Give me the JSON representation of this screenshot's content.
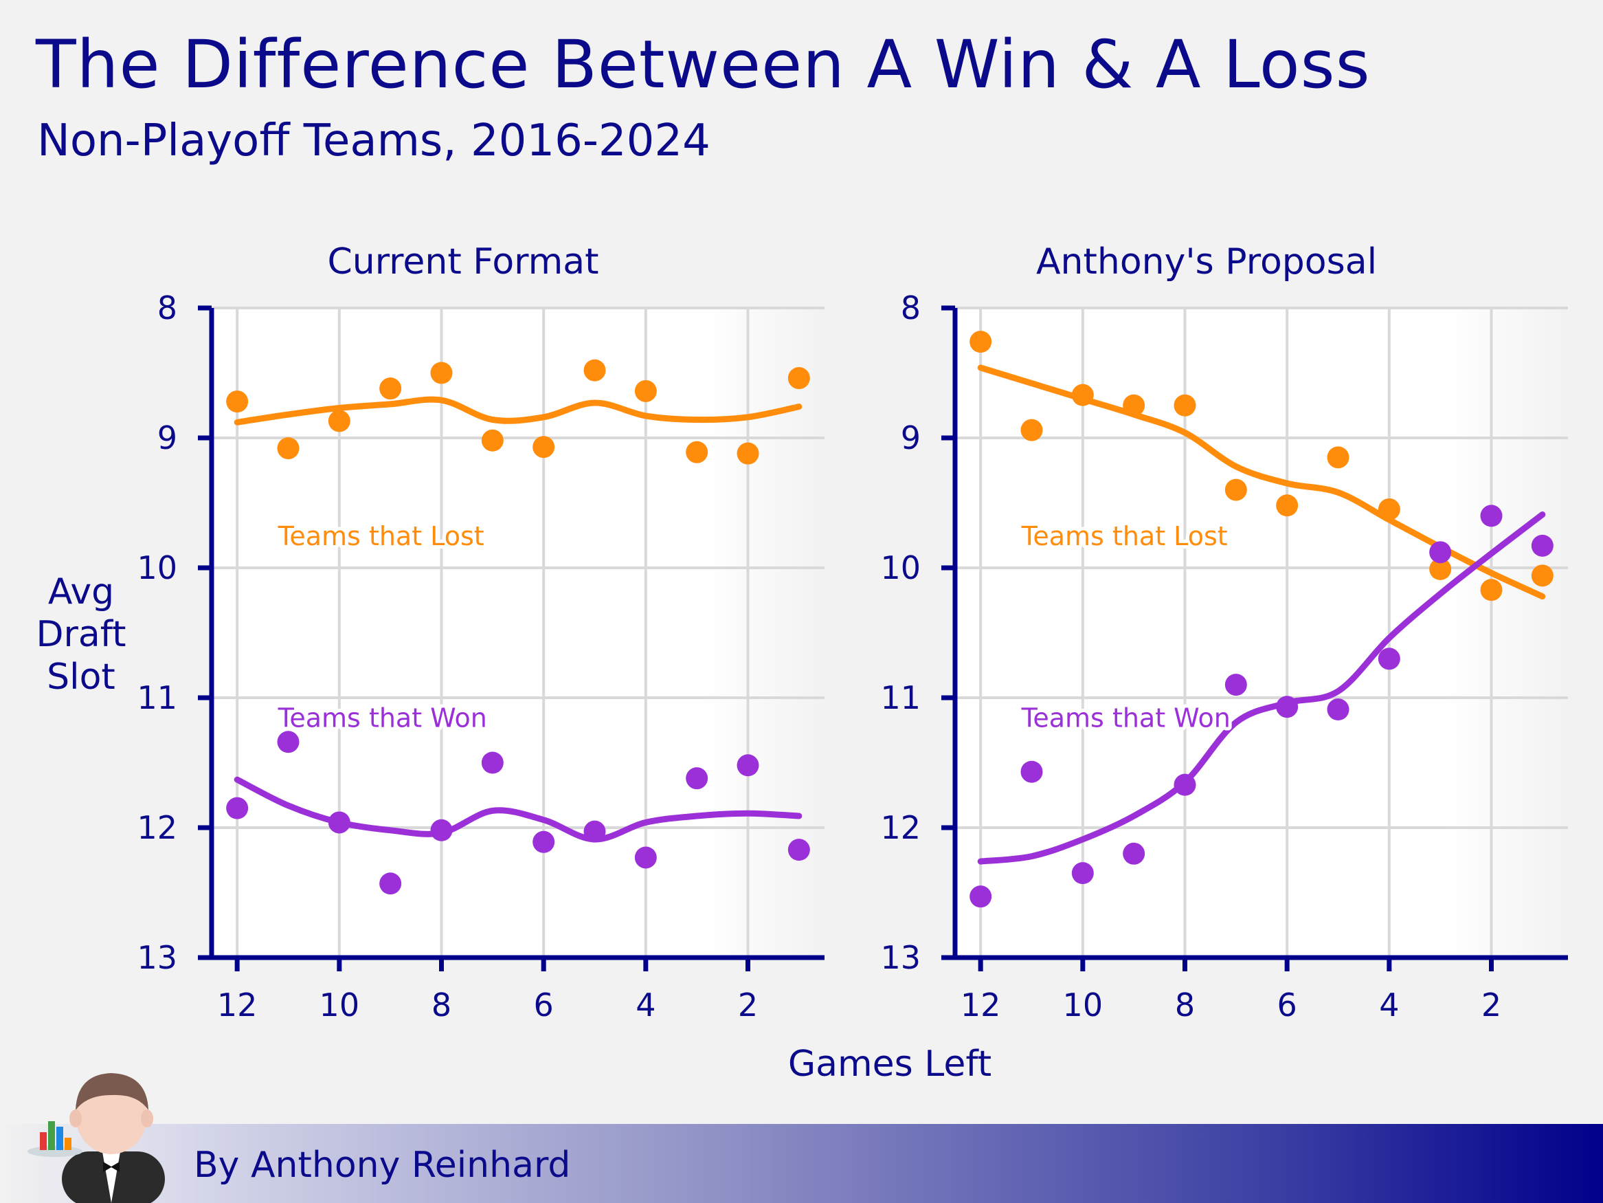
{
  "title": "The Difference Between A Win & A Loss",
  "subtitle": "Non-Playoff Teams, 2016-2024",
  "byline": "By Anthony Reinhard",
  "colors": {
    "lost": "#ff8c0a",
    "won": "#9b30d9",
    "text": "#0a0a8a",
    "axis": "#00008b",
    "grid": "#d9d9d9"
  },
  "chart_data": {
    "xlabel": "Games Left",
    "ylabel_lines": [
      "Avg",
      "Draft",
      "Slot"
    ],
    "xlim": [
      12.5,
      0.5
    ],
    "ylim": [
      13,
      8
    ],
    "xticks": [
      12,
      10,
      8,
      6,
      4,
      2
    ],
    "yticks": [
      8,
      9,
      10,
      11,
      12,
      13
    ],
    "panels": [
      {
        "title": "Current Format",
        "series": [
          {
            "name": "Teams that Lost",
            "color_key": "lost",
            "label": "Teams that Lost",
            "label_pos": [
              11.2,
              9.75
            ],
            "points": [
              [
                12,
                8.72
              ],
              [
                11,
                9.08
              ],
              [
                10,
                8.87
              ],
              [
                9,
                8.62
              ],
              [
                8,
                8.5
              ],
              [
                7,
                9.02
              ],
              [
                6,
                9.07
              ],
              [
                5,
                8.48
              ],
              [
                4,
                8.64
              ],
              [
                3,
                9.11
              ],
              [
                2,
                9.12
              ],
              [
                1,
                8.54
              ]
            ],
            "trend": [
              [
                12,
                8.88
              ],
              [
                11,
                8.82
              ],
              [
                10,
                8.77
              ],
              [
                9,
                8.74
              ],
              [
                8,
                8.71
              ],
              [
                7,
                8.86
              ],
              [
                6,
                8.84
              ],
              [
                5,
                8.73
              ],
              [
                4,
                8.83
              ],
              [
                3,
                8.86
              ],
              [
                2,
                8.84
              ],
              [
                1,
                8.76
              ]
            ]
          },
          {
            "name": "Teams that Won",
            "color_key": "won",
            "label": "Teams that Won",
            "label_pos": [
              11.2,
              11.15
            ],
            "points": [
              [
                12,
                11.85
              ],
              [
                11,
                11.34
              ],
              [
                10,
                11.96
              ],
              [
                9,
                12.43
              ],
              [
                8,
                12.02
              ],
              [
                7,
                11.5
              ],
              [
                6,
                12.11
              ],
              [
                5,
                12.03
              ],
              [
                4,
                12.23
              ],
              [
                3,
                11.62
              ],
              [
                2,
                11.52
              ],
              [
                1,
                12.17
              ]
            ],
            "trend": [
              [
                12,
                11.63
              ],
              [
                11,
                11.83
              ],
              [
                10,
                11.96
              ],
              [
                9,
                12.02
              ],
              [
                8,
                12.04
              ],
              [
                7,
                11.87
              ],
              [
                6,
                11.94
              ],
              [
                5,
                12.09
              ],
              [
                4,
                11.96
              ],
              [
                3,
                11.91
              ],
              [
                2,
                11.89
              ],
              [
                1,
                11.91
              ]
            ]
          }
        ]
      },
      {
        "title": "Anthony's Proposal",
        "series": [
          {
            "name": "Teams that Lost",
            "color_key": "lost",
            "label": "Teams that Lost",
            "label_pos": [
              11.2,
              9.75
            ],
            "points": [
              [
                12,
                8.26
              ],
              [
                11,
                8.94
              ],
              [
                10,
                8.67
              ],
              [
                9,
                8.75
              ],
              [
                8,
                8.75
              ],
              [
                7,
                9.4
              ],
              [
                6,
                9.52
              ],
              [
                5,
                9.15
              ],
              [
                4,
                9.55
              ],
              [
                3,
                10.01
              ],
              [
                2,
                10.17
              ],
              [
                1,
                10.06
              ]
            ],
            "trend": [
              [
                12,
                8.46
              ],
              [
                11,
                8.58
              ],
              [
                10,
                8.7
              ],
              [
                9,
                8.82
              ],
              [
                8,
                8.96
              ],
              [
                7,
                9.22
              ],
              [
                6,
                9.35
              ],
              [
                5,
                9.42
              ],
              [
                4,
                9.63
              ],
              [
                3,
                9.84
              ],
              [
                2,
                10.04
              ],
              [
                1,
                10.22
              ]
            ]
          },
          {
            "name": "Teams that Won",
            "color_key": "won",
            "label": "Teams that Won",
            "label_pos": [
              11.2,
              11.15
            ],
            "points": [
              [
                12,
                12.53
              ],
              [
                11,
                11.57
              ],
              [
                10,
                12.35
              ],
              [
                9,
                12.2
              ],
              [
                8,
                11.67
              ],
              [
                7,
                10.9
              ],
              [
                6,
                11.07
              ],
              [
                5,
                11.09
              ],
              [
                4,
                10.7
              ],
              [
                3,
                9.88
              ],
              [
                2,
                9.6
              ],
              [
                1,
                9.83
              ]
            ],
            "trend": [
              [
                12,
                12.26
              ],
              [
                11,
                12.22
              ],
              [
                10,
                12.09
              ],
              [
                9,
                11.91
              ],
              [
                8,
                11.65
              ],
              [
                7,
                11.19
              ],
              [
                6,
                11.04
              ],
              [
                5,
                10.95
              ],
              [
                4,
                10.54
              ],
              [
                3,
                10.2
              ],
              [
                2,
                9.89
              ],
              [
                1,
                9.59
              ]
            ]
          }
        ]
      }
    ]
  }
}
